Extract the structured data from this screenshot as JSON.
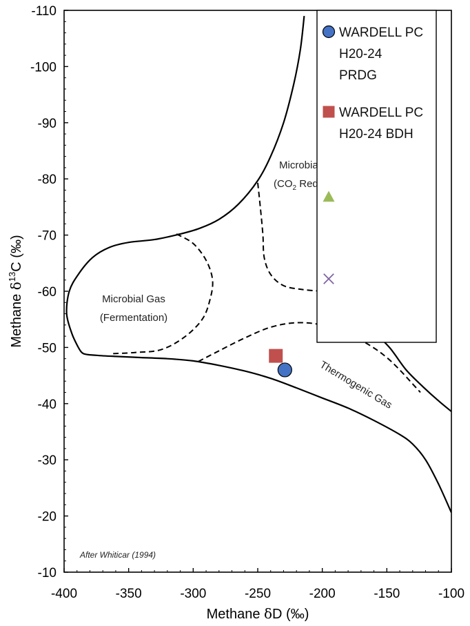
{
  "chart_data": {
    "type": "scatter",
    "xlabel_prefix": "Methane ",
    "xlabel_symbol": "δ",
    "xlabel_rest": "D (‰)",
    "ylabel_prefix": "Methane ",
    "ylabel_symbol": "δ",
    "ylabel_sup": "13",
    "ylabel_rest": "C (‰)",
    "xlim": [
      -400,
      -100
    ],
    "ylim": [
      -10,
      -110
    ],
    "x_ticks": [
      -400,
      -350,
      -300,
      -250,
      -200,
      -150,
      -100
    ],
    "y_ticks": [
      -10,
      -20,
      -30,
      -40,
      -50,
      -60,
      -70,
      -80,
      -90,
      -100,
      -110
    ],
    "grid": false,
    "legend_position": "top-right",
    "series": [
      {
        "name": "WARDELL PC H20-24 PRDG",
        "legend_lines": [
          "WARDELL PC",
          "H20-24",
          "PRDG"
        ],
        "marker": "circle",
        "color": "#4472C4",
        "points": [
          [
            -229,
            -46
          ]
        ]
      },
      {
        "name": "WARDELL PC H20-24 BDH",
        "legend_lines": [
          "WARDELL PC",
          "H20-24 BDH"
        ],
        "marker": "square",
        "color": "#C0504D",
        "points": [
          [
            -236,
            -48.5
          ]
        ]
      },
      {
        "name": "",
        "legend_lines": [],
        "marker": "triangle",
        "color": "#9BBB59",
        "points": []
      },
      {
        "name": "",
        "legend_lines": [],
        "marker": "x",
        "color": "#8064A2",
        "points": []
      }
    ],
    "region_labels": {
      "fermentation_line1": "Microbial Gas",
      "fermentation_line2": "(Fermentation)",
      "co2_line1": "Microbial Gas",
      "co2_line2_prefix": "(CO",
      "co2_line2_sub": "2",
      "co2_line2_rest": " Reduction)",
      "thermogenic": "Thermogenic Gas"
    },
    "citation": "After Whiticar (1994)",
    "boundaries": {
      "outer_upper": [
        [
          -389,
          -50
        ],
        [
          -385,
          -48.9
        ],
        [
          -375,
          -48.6
        ],
        [
          -360,
          -48.4
        ],
        [
          -340,
          -48.2
        ],
        [
          -320,
          -48
        ],
        [
          -300,
          -47.6
        ],
        [
          -280,
          -46.8
        ],
        [
          -260,
          -45.8
        ],
        [
          -240,
          -44.5
        ],
        [
          -220,
          -42.8
        ],
        [
          -200,
          -41
        ],
        [
          -180,
          -39.2
        ],
        [
          -160,
          -37
        ],
        [
          -140,
          -34.5
        ],
        [
          -130,
          -32.8
        ],
        [
          -120,
          -30
        ],
        [
          -110,
          -25.7
        ],
        [
          -100,
          -20.6
        ]
      ],
      "outer_lower": [
        [
          -389,
          -50
        ],
        [
          -394,
          -52.5
        ],
        [
          -398,
          -56
        ],
        [
          -396,
          -60
        ],
        [
          -389,
          -63
        ],
        [
          -378,
          -66
        ],
        [
          -365,
          -67.8
        ],
        [
          -350,
          -68.7
        ],
        [
          -330,
          -69.2
        ],
        [
          -310,
          -70.2
        ],
        [
          -295,
          -71.2
        ],
        [
          -280,
          -72.8
        ],
        [
          -265,
          -75.5
        ],
        [
          -250,
          -79.7
        ],
        [
          -240,
          -84
        ],
        [
          -230,
          -90
        ],
        [
          -222,
          -97
        ],
        [
          -217,
          -103
        ],
        [
          -214,
          -109
        ]
      ],
      "thermo_right": [
        [
          -200,
          -57
        ],
        [
          -180,
          -55.5
        ],
        [
          -160,
          -52.5
        ],
        [
          -148,
          -50
        ],
        [
          -135,
          -46
        ],
        [
          -122,
          -43
        ],
        [
          -110,
          -40.5
        ],
        [
          -100,
          -38.6
        ]
      ],
      "fermentation_dashed": [
        [
          -313,
          -70.2
        ],
        [
          -300,
          -68.5
        ],
        [
          -290,
          -65.5
        ],
        [
          -285,
          -62
        ],
        [
          -287,
          -58.5
        ],
        [
          -293,
          -55
        ],
        [
          -307,
          -51.8
        ],
        [
          -325,
          -49.6
        ],
        [
          -345,
          -49.1
        ],
        [
          -362,
          -48.9
        ]
      ],
      "co2_dashed": [
        [
          -250,
          -79.3
        ],
        [
          -248,
          -75
        ],
        [
          -246,
          -70
        ],
        [
          -245,
          -66
        ],
        [
          -240,
          -63
        ],
        [
          -230,
          -61
        ],
        [
          -215,
          -60.3
        ],
        [
          -200,
          -60
        ]
      ],
      "thermo_dashed": [
        [
          -296,
          -47.5
        ],
        [
          -280,
          -49.4
        ],
        [
          -260,
          -51.7
        ],
        [
          -240,
          -53.6
        ],
        [
          -220,
          -54.4
        ],
        [
          -200,
          -54
        ],
        [
          -180,
          -52.5
        ],
        [
          -162,
          -50.2
        ],
        [
          -150,
          -48.2
        ],
        [
          -140,
          -46
        ],
        [
          -130,
          -43.5
        ],
        [
          -124,
          -42
        ]
      ]
    }
  }
}
